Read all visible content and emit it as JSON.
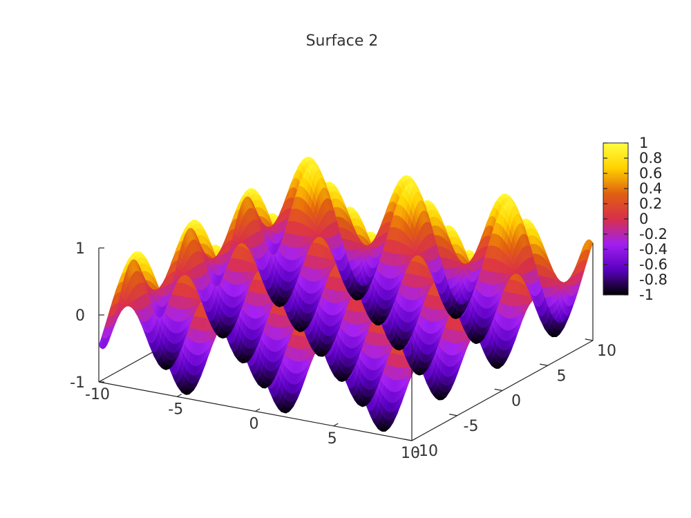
{
  "chart_data": {
    "type": "surface",
    "title": "Surface 2",
    "function": "z = sin(x) * cos(y)",
    "x_range": [
      -10,
      10
    ],
    "y_range": [
      -10,
      10
    ],
    "z_range": [
      -1,
      1
    ],
    "x_ticks": [
      -10,
      -5,
      0,
      5,
      10
    ],
    "y_ticks": [
      -10,
      -5,
      0,
      5,
      10
    ],
    "z_ticks": [
      -1,
      0,
      1
    ],
    "x_tick_labels": [
      "-10",
      "-5",
      "0",
      "5",
      "10"
    ],
    "y_tick_labels": [
      "-10",
      "-5",
      "0",
      "5",
      "10"
    ],
    "z_tick_labels": [
      "-1",
      "0",
      "1"
    ],
    "colorbar": {
      "range": [
        -1,
        1
      ],
      "tick_labels": [
        "1",
        "0.8",
        "0.6",
        "0.4",
        "0.2",
        "0",
        "-0.2",
        "-0.4",
        "-0.6",
        "-0.8",
        "-1"
      ],
      "palette": [
        "#000000",
        "#5a00c0",
        "#a020f0",
        "#d8304a",
        "#e06010",
        "#ffd000",
        "#ffff40"
      ]
    },
    "grid": false
  }
}
